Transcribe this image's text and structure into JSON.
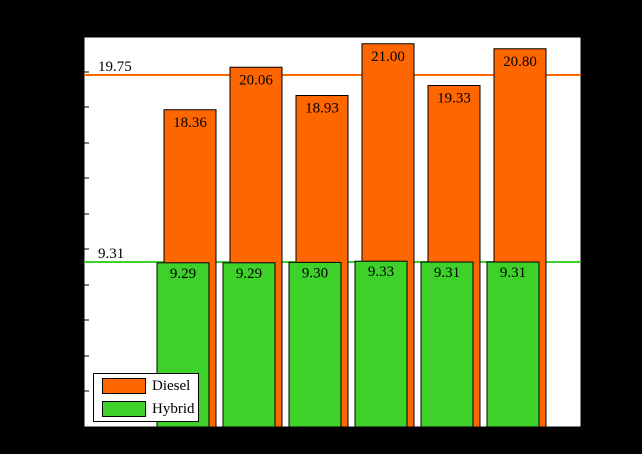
{
  "chart_data": {
    "type": "bar",
    "title": "",
    "xlabel": "",
    "ylabel": "",
    "categories": [
      "",
      "",
      "",
      "",
      "",
      ""
    ],
    "series": [
      {
        "name": "Diesel",
        "color": "#ff6600",
        "values": [
          18.36,
          20.06,
          18.93,
          21.0,
          19.33,
          20.8
        ]
      },
      {
        "name": "Hybrid",
        "color": "#3ed12a",
        "values": [
          9.29,
          9.29,
          9.3,
          9.33,
          9.31,
          9.31
        ]
      }
    ],
    "reference_lines": [
      {
        "label": "19.75",
        "value": 19.75,
        "color": "#ff6600"
      },
      {
        "label": "9.31",
        "value": 9.31,
        "color": "#3ed12a"
      }
    ],
    "value_labels": {
      "diesel": [
        "18.36",
        "20.06",
        "18.93",
        "21.00",
        "19.33",
        "20.80"
      ],
      "hybrid": [
        "9.29",
        "9.29",
        "9.30",
        "9.33",
        "9.31",
        "9.31"
      ]
    },
    "legend": {
      "position": "bottom-left"
    },
    "grid": false
  }
}
